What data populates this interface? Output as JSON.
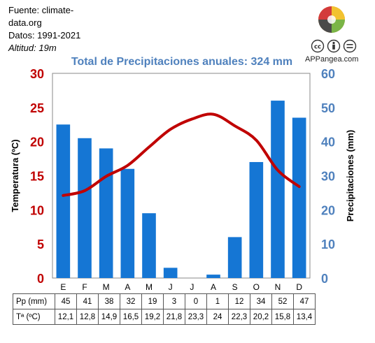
{
  "source": {
    "line1": "Fuente: climate-",
    "line2": "data.org",
    "period": "Datos: 1991-2021",
    "altitude": "Altitud: 19m"
  },
  "brand": {
    "name": "APPangea.com",
    "logo_icon": "puzzle-globe-logo",
    "license_icons": [
      "cc-icon",
      "by-icon",
      "nd-icon"
    ]
  },
  "colors": {
    "bars": "#1576d4",
    "line": "#c00000",
    "left_axis": "#c00000",
    "right_axis": "#4f81bd",
    "title": "#4f81bd"
  },
  "chart_data": {
    "type": "bar-line",
    "title": "Total de Precipitaciones anuales: 324 mm",
    "categories": [
      "E",
      "F",
      "M",
      "A",
      "M",
      "J",
      "J",
      "A",
      "S",
      "O",
      "N",
      "D"
    ],
    "series": [
      {
        "type": "bar",
        "axis": "right",
        "values": [
          45,
          41,
          38,
          32,
          19,
          3,
          0,
          1,
          12,
          34,
          52,
          47
        ]
      },
      {
        "type": "line",
        "axis": "left",
        "values": [
          12.1,
          12.8,
          14.9,
          16.5,
          19.2,
          21.8,
          23.3,
          24,
          22.3,
          20.2,
          15.8,
          13.4
        ]
      }
    ],
    "ylabel_left": "Temperatura (ºC)",
    "ylabel_right": "Precipitaciones (mm)",
    "ylim_left": [
      0,
      30
    ],
    "ylim_right": [
      0,
      60
    ],
    "yticks_left": [
      "0",
      "5",
      "10",
      "15",
      "20",
      "25",
      "30"
    ],
    "yticks_right": [
      "0",
      "10",
      "20",
      "30",
      "40",
      "50",
      "60"
    ],
    "grid": false,
    "legend": "none"
  },
  "table": {
    "rows": [
      {
        "label": "Pp (mm)",
        "cells": [
          "45",
          "41",
          "38",
          "32",
          "19",
          "3",
          "0",
          "1",
          "12",
          "34",
          "52",
          "47"
        ]
      },
      {
        "label": "Tª (ºC)",
        "cells": [
          "12,1",
          "12,8",
          "14,9",
          "16,5",
          "19,2",
          "21,8",
          "23,3",
          "24",
          "22,3",
          "20,2",
          "15,8",
          "13,4"
        ]
      }
    ]
  }
}
